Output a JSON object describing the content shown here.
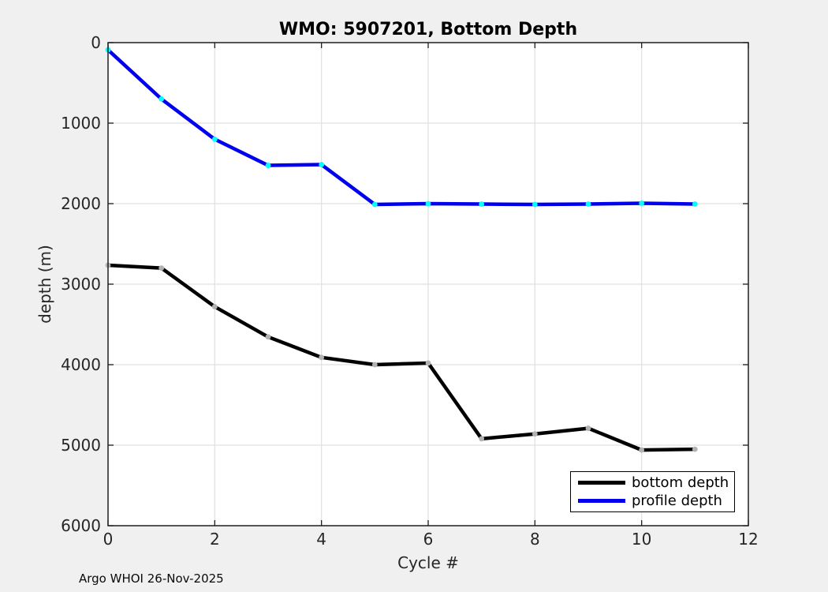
{
  "chart_data": {
    "type": "line",
    "title": "WMO: 5907201, Bottom Depth",
    "xlabel": "Cycle #",
    "ylabel": "depth (m)",
    "annotation": "Argo WHOI 26-Nov-2025",
    "xlim": [
      0,
      12
    ],
    "ylim": [
      0,
      6000
    ],
    "y_axis_reversed": true,
    "grid": true,
    "x_ticks": [
      0,
      2,
      4,
      6,
      8,
      10,
      12
    ],
    "y_ticks": [
      0,
      1000,
      2000,
      3000,
      4000,
      5000,
      6000
    ],
    "x": [
      0,
      1,
      2,
      3,
      4,
      5,
      6,
      7,
      8,
      9,
      10,
      11
    ],
    "series": [
      {
        "name": "bottom depth",
        "color": "#000000",
        "marker_color": "#b2b2b2",
        "values": [
          2765,
          2800,
          3280,
          3655,
          3910,
          4000,
          3980,
          4920,
          4860,
          4790,
          5060,
          5050
        ]
      },
      {
        "name": "profile depth",
        "color": "#0000ee",
        "marker_color": "#00ffff",
        "values": [
          90,
          700,
          1200,
          1525,
          1515,
          2010,
          2000,
          2005,
          2010,
          2005,
          1995,
          2005
        ]
      }
    ],
    "legend_position": "bottom-right",
    "plot_bg": "#ffffff",
    "figure_bg": "#f0f0f0",
    "grid_color": "#e0e0e0",
    "axis_color": "#1f1f1f"
  }
}
